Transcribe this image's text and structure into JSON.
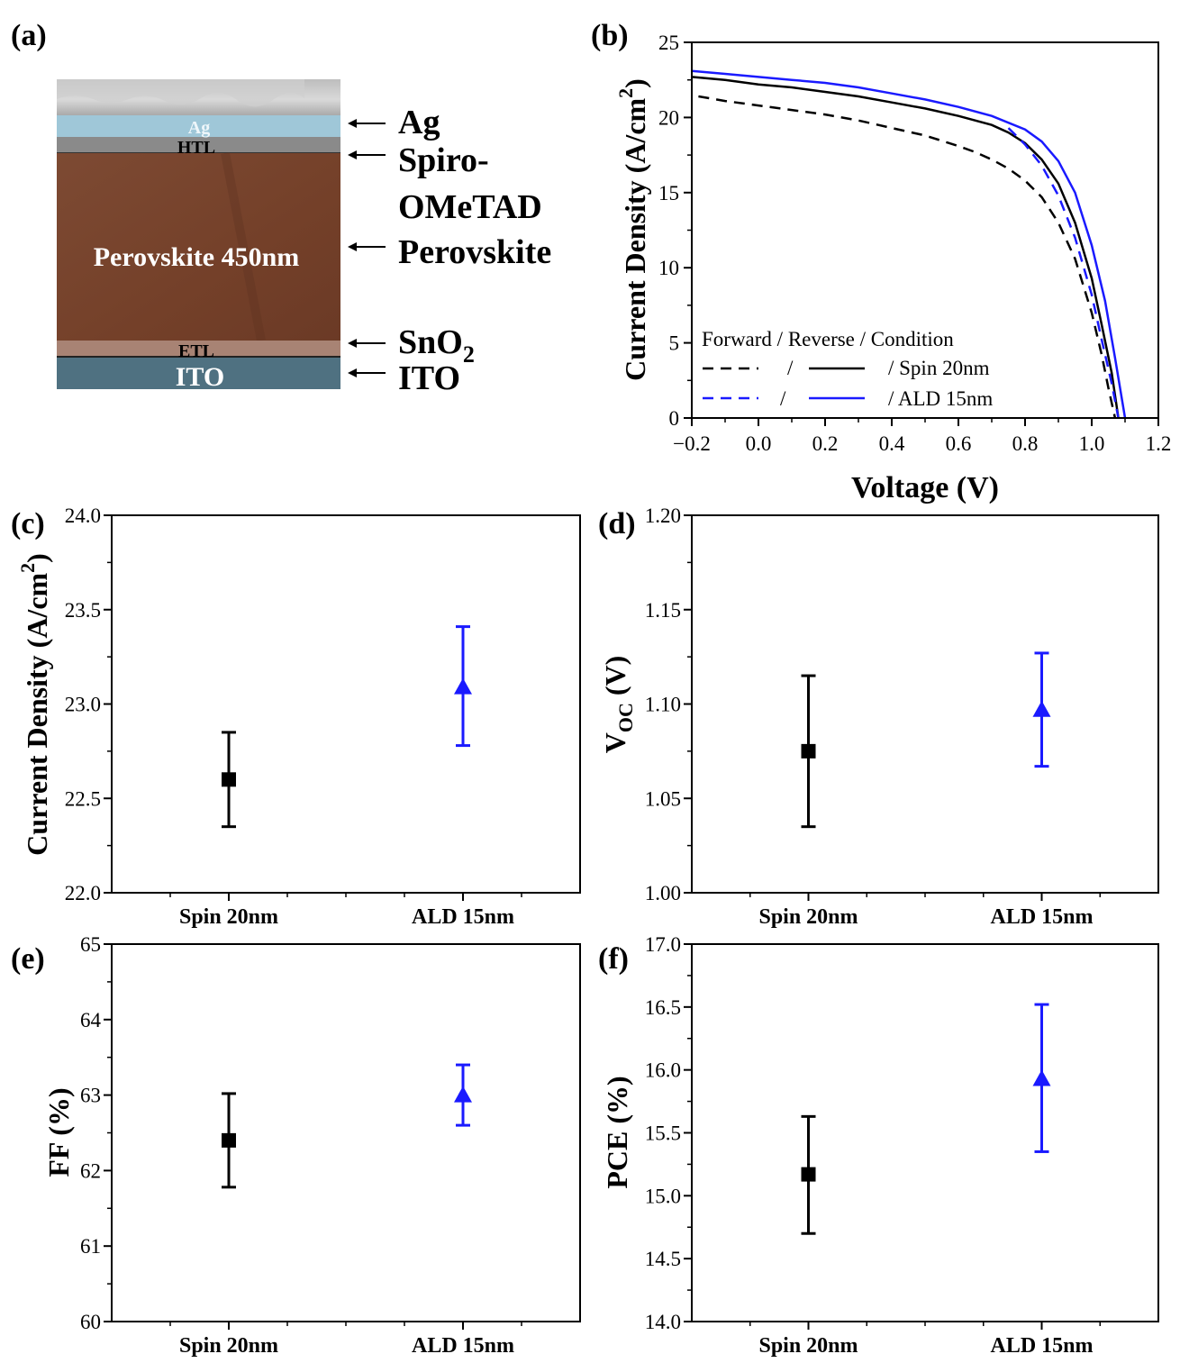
{
  "colors": {
    "black": "#000000",
    "blue": "#1a1aff",
    "perovskite": "#7a4530",
    "ito": "#4f7181",
    "ag": "#9fc7d8"
  },
  "panel_a": {
    "label": "(a)",
    "inner": {
      "ag": "Ag",
      "htl": "HTL",
      "perovskite": "Perovskite  450nm",
      "etl": "ETL",
      "ito": "ITO"
    },
    "callouts": {
      "ag": "Ag",
      "spiro1": "Spiro-",
      "spiro2": "OMeTAD",
      "perovskite": "Perovskite",
      "sno2_main": "SnO",
      "sno2_sub": "2",
      "ito": "ITO"
    }
  },
  "chart_data": [
    {
      "id": "b",
      "type": "line",
      "panel_label": "(b)",
      "xlabel": "Voltage (V)",
      "ylabel_main": "Current Density (A/cm",
      "ylabel_sup": "2",
      "ylabel_end": ")",
      "xlim": [
        -0.2,
        1.2
      ],
      "ylim": [
        0,
        25
      ],
      "xticks": [
        -0.2,
        0.0,
        0.2,
        0.4,
        0.6,
        0.8,
        1.0,
        1.2
      ],
      "xtick_labels": [
        "−0.2",
        "0.0",
        "0.2",
        "0.4",
        "0.6",
        "0.8",
        "1.0",
        "1.2"
      ],
      "yticks": [
        0,
        5,
        10,
        15,
        20,
        25
      ],
      "ytick_labels": [
        "0",
        "5",
        "10",
        "15",
        "20",
        "25"
      ],
      "legend": {
        "header": "Forward / Reverse / Condition",
        "row1_slash1": "/",
        "row1_text": "/ Spin 20nm",
        "row2_slash1": "/",
        "row2_text": "/ ALD 15nm",
        "placement": "bottom-left"
      },
      "series": [
        {
          "condition": "Spin 20nm",
          "scan": "forward",
          "color": "#000000",
          "dashed": true,
          "x": [
            -0.18,
            -0.1,
            0.0,
            0.1,
            0.2,
            0.3,
            0.4,
            0.5,
            0.6,
            0.65,
            0.7,
            0.75,
            0.8,
            0.85,
            0.9,
            0.95,
            1.0,
            1.03,
            1.05,
            1.07
          ],
          "y": [
            21.4,
            21.1,
            20.8,
            20.5,
            20.2,
            19.8,
            19.3,
            18.8,
            18.1,
            17.7,
            17.2,
            16.6,
            15.8,
            14.7,
            13.0,
            10.6,
            7.0,
            4.2,
            2.0,
            0
          ]
        },
        {
          "condition": "Spin 20nm",
          "scan": "reverse",
          "color": "#000000",
          "dashed": false,
          "x": [
            -0.2,
            -0.1,
            0.0,
            0.1,
            0.2,
            0.3,
            0.4,
            0.5,
            0.6,
            0.7,
            0.75,
            0.8,
            0.85,
            0.9,
            0.95,
            1.0,
            1.03,
            1.06,
            1.08
          ],
          "y": [
            22.7,
            22.5,
            22.2,
            22.0,
            21.7,
            21.4,
            21.0,
            20.6,
            20.1,
            19.5,
            19.0,
            18.3,
            17.2,
            15.6,
            13.0,
            9.3,
            6.2,
            3.0,
            0
          ]
        },
        {
          "condition": "ALD 15nm",
          "scan": "forward",
          "color": "#1a1aff",
          "dashed": true,
          "x": [
            0.75,
            0.8,
            0.85,
            0.9,
            0.95,
            1.0,
            1.03,
            1.06,
            1.08
          ],
          "y": [
            19.3,
            18.2,
            16.8,
            14.8,
            12.0,
            8.2,
            5.2,
            2.3,
            0
          ]
        },
        {
          "condition": "ALD 15nm",
          "scan": "reverse",
          "color": "#1a1aff",
          "dashed": false,
          "x": [
            -0.2,
            -0.1,
            0.0,
            0.1,
            0.2,
            0.3,
            0.4,
            0.5,
            0.6,
            0.7,
            0.8,
            0.85,
            0.9,
            0.95,
            1.0,
            1.04,
            1.07,
            1.1
          ],
          "y": [
            23.1,
            22.9,
            22.7,
            22.5,
            22.3,
            22.0,
            21.6,
            21.2,
            20.7,
            20.1,
            19.2,
            18.4,
            17.1,
            15.0,
            11.5,
            7.8,
            4.0,
            0
          ]
        }
      ]
    },
    {
      "id": "c",
      "type": "scatter",
      "panel_label": "(c)",
      "ylabel_main": "Current Density (A/cm",
      "ylabel_sup": "2",
      "ylabel_end": ")",
      "categories": [
        "Spin 20nm",
        "ALD 15nm"
      ],
      "ylim": [
        22.0,
        24.0
      ],
      "yticks": [
        22.0,
        22.5,
        23.0,
        23.5,
        24.0
      ],
      "ytick_labels": [
        "22.0",
        "22.5",
        "23.0",
        "23.5",
        "24.0"
      ],
      "points": [
        {
          "category": "Spin 20nm",
          "value": 22.6,
          "err_low": 22.35,
          "err_high": 22.85,
          "marker": "square",
          "color": "#000000"
        },
        {
          "category": "ALD 15nm",
          "value": 23.09,
          "err_low": 22.78,
          "err_high": 23.41,
          "marker": "triangle",
          "color": "#1a1aff"
        }
      ]
    },
    {
      "id": "d",
      "type": "scatter",
      "panel_label": "(d)",
      "ylabel_main": "V",
      "ylabel_sub": "OC",
      "ylabel_end": " (V)",
      "categories": [
        "Spin 20nm",
        "ALD 15nm"
      ],
      "ylim": [
        1.0,
        1.2
      ],
      "yticks": [
        1.0,
        1.05,
        1.1,
        1.15,
        1.2
      ],
      "ytick_labels": [
        "1.00",
        "1.05",
        "1.10",
        "1.15",
        "1.20"
      ],
      "points": [
        {
          "category": "Spin 20nm",
          "value": 1.075,
          "err_low": 1.035,
          "err_high": 1.115,
          "marker": "square",
          "color": "#000000"
        },
        {
          "category": "ALD 15nm",
          "value": 1.097,
          "err_low": 1.067,
          "err_high": 1.127,
          "marker": "triangle",
          "color": "#1a1aff"
        }
      ]
    },
    {
      "id": "e",
      "type": "scatter",
      "panel_label": "(e)",
      "ylabel_main": "FF (%)",
      "categories": [
        "Spin 20nm",
        "ALD 15nm"
      ],
      "ylim": [
        60,
        65
      ],
      "yticks": [
        60,
        61,
        62,
        63,
        64,
        65
      ],
      "ytick_labels": [
        "60",
        "61",
        "62",
        "63",
        "64",
        "65"
      ],
      "points": [
        {
          "category": "Spin 20nm",
          "value": 62.4,
          "err_low": 61.78,
          "err_high": 63.02,
          "marker": "square",
          "color": "#000000"
        },
        {
          "category": "ALD 15nm",
          "value": 63.0,
          "err_low": 62.6,
          "err_high": 63.4,
          "marker": "triangle",
          "color": "#1a1aff"
        }
      ]
    },
    {
      "id": "f",
      "type": "scatter",
      "panel_label": "(f)",
      "ylabel_main": "PCE (%)",
      "categories": [
        "Spin 20nm",
        "ALD 15nm"
      ],
      "ylim": [
        14.0,
        17.0
      ],
      "yticks": [
        14.0,
        14.5,
        15.0,
        15.5,
        16.0,
        16.5,
        17.0
      ],
      "ytick_labels": [
        "14.0",
        "14.5",
        "15.0",
        "15.5",
        "16.0",
        "16.5",
        "17.0"
      ],
      "points": [
        {
          "category": "Spin 20nm",
          "value": 15.17,
          "err_low": 14.7,
          "err_high": 15.63,
          "marker": "square",
          "color": "#000000"
        },
        {
          "category": "ALD 15nm",
          "value": 15.93,
          "err_low": 15.35,
          "err_high": 16.52,
          "marker": "triangle",
          "color": "#1a1aff"
        }
      ]
    }
  ]
}
